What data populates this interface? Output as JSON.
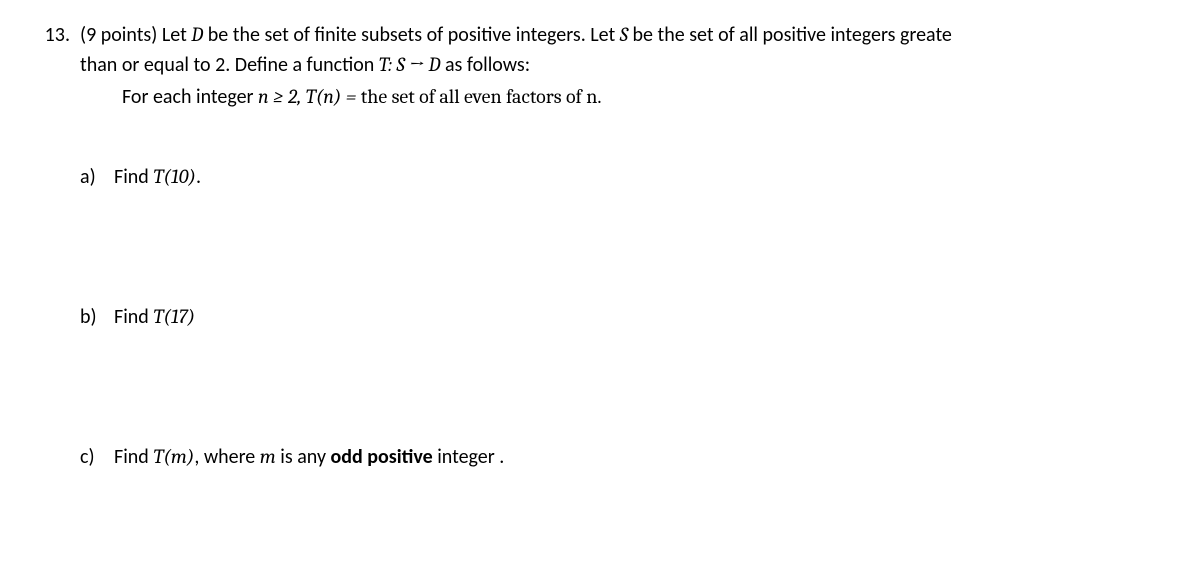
{
  "problem": {
    "number": "13.",
    "points": "(9 points)",
    "stem_line1_a": "Let ",
    "stem_D": "D",
    "stem_line1_b": " be the set of finite subsets of positive integers. Let ",
    "stem_S": "S",
    "stem_line1_c": " be the set of all positive integers greate",
    "stem_line2_a": "than or equal to 2. Define a function ",
    "stem_func": "T: S → D",
    "stem_line2_b": " as follows:",
    "stem_line3_a": "For each integer ",
    "stem_cond": "n ≥ 2, T(n) = ",
    "stem_line3_b": "the set of all even factors of n."
  },
  "parts": {
    "a": {
      "label": "a)",
      "pre": "Find ",
      "math": "T(10)",
      "post": "."
    },
    "b": {
      "label": "b)",
      "pre": "Find ",
      "math": "T(17)",
      "post": ""
    },
    "c": {
      "label": "c)",
      "pre": "Find ",
      "math": "T(m)",
      "mid1": ", where ",
      "m": "m",
      "mid2": " is any ",
      "bold": "odd positive",
      "post2": " integer ."
    }
  }
}
